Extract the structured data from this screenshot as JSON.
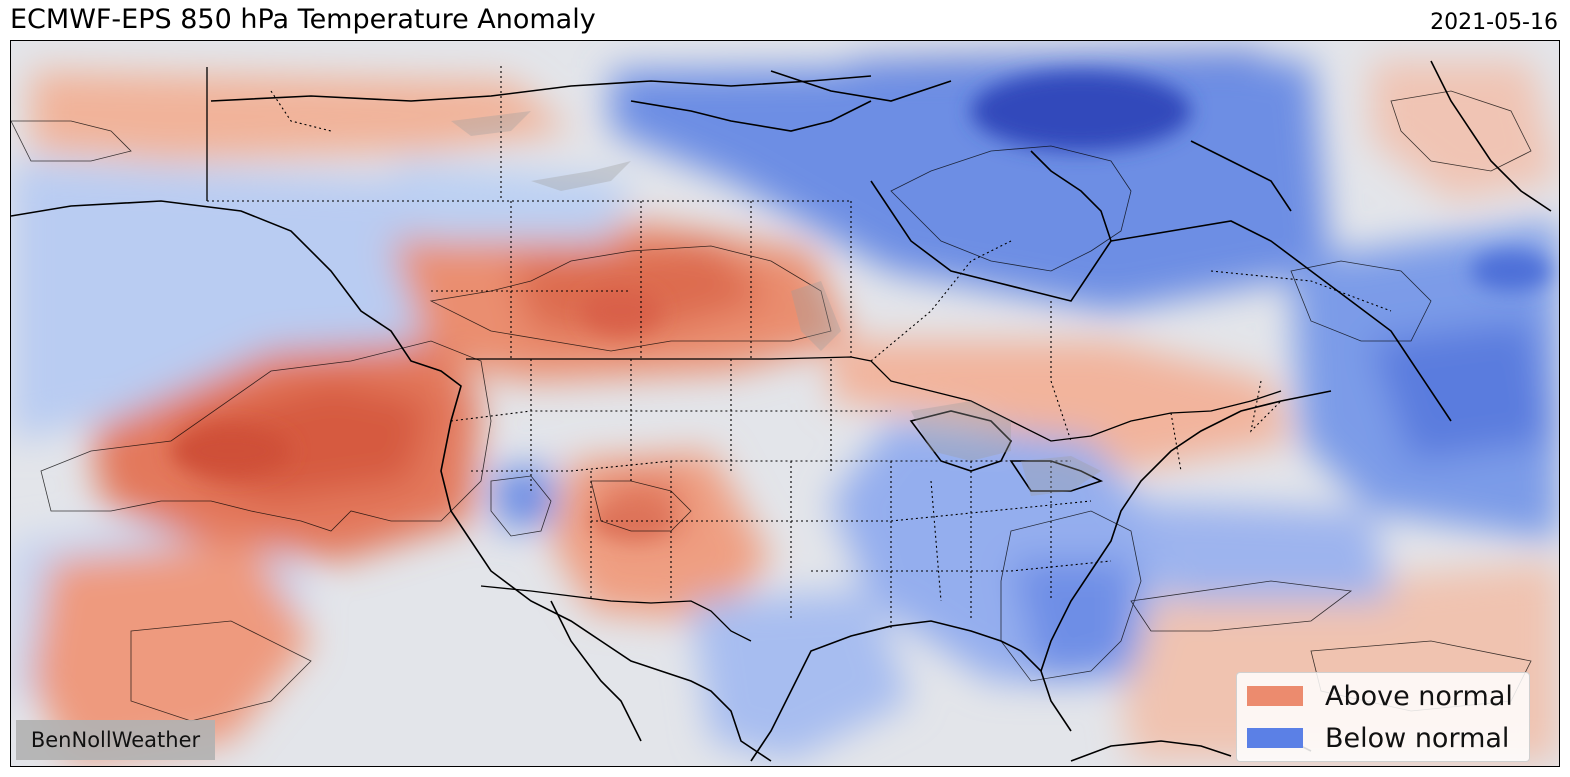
{
  "title": "ECMWF-EPS 850 hPa Temperature Anomaly",
  "date": "2021-05-16",
  "watermark": "BenNollWeather",
  "legend": {
    "items": [
      {
        "label": "Above normal",
        "color": "#ec8b6e"
      },
      {
        "label": "Below normal",
        "color": "#5b80e6"
      }
    ]
  },
  "colors": {
    "warm_strong": "#d9593f",
    "warm_medium": "#ea8a6c",
    "warm_light": "#f3b9a0",
    "neutral": "#e3e5ea",
    "cool_light": "#c0d1f3",
    "cool_medium": "#8aa8ee",
    "cool_strong": "#5476de",
    "cool_deep": "#3551c4"
  }
}
